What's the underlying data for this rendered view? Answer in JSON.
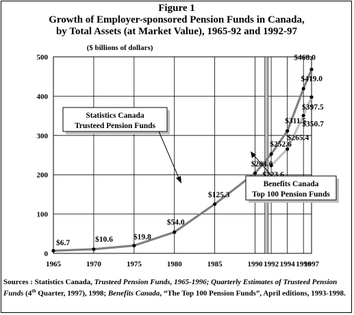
{
  "figure": {
    "label": "Figure 1",
    "title_line1": "Growth of Employer-sponsored Pension Funds in Canada,",
    "title_line2": "by Total Assets (at Market Value), 1965-92 and 1992-97"
  },
  "source": {
    "prefix": "Sources : Statistics Canada, ",
    "ref1": "Trusteed Pension Funds, 1965-1996; Quarterly Estimates of Trusteed Pension Funds",
    "mid1": " (4",
    "sup": "th",
    "mid2": " Quarter, 1997), 1998; ",
    "ref2": "Benefits Canada",
    "suffix": ", “The Top 100 Pension Funds”, April editions, 1993-1998."
  },
  "colors": {
    "statcan_line": "#808080",
    "benefits_line": "#c0c0c0",
    "markers": "#000000"
  },
  "chart_data": {
    "type": "line",
    "ylabel": "($ billions of dollars)",
    "xlabel": "",
    "xlim": [
      1965,
      1997
    ],
    "ylim": [
      0,
      500
    ],
    "grid": true,
    "x_ticks": [
      "1965",
      "1970",
      "1975",
      "1980",
      "1985",
      "1990",
      "1992",
      "1994",
      "1996",
      "1997"
    ],
    "y_ticks": [
      "0",
      "100",
      "200",
      "300",
      "400",
      "500"
    ],
    "series": [
      {
        "name": "Statistics Canada Trusteed Pension Funds",
        "x": [
          1965,
          1970,
          1975,
          1980,
          1985,
          1990,
          1992,
          1994,
          1996,
          1997
        ],
        "values": [
          6.7,
          10.6,
          19.8,
          54.0,
          125.3,
          204.0,
          252.6,
          311.5,
          419.0,
          468.0
        ],
        "labels": [
          "$6.7",
          "$10.6",
          "$19.8",
          "$54.0",
          "$125.3",
          "$204.0",
          "$252.6",
          "$311.5",
          "$419.0",
          "$468.0"
        ]
      },
      {
        "name": "Benefits Canada Top 100 Pension Funds",
        "x": [
          1992,
          1994,
          1996,
          1997
        ],
        "values": [
          223.6,
          265.4,
          350.7,
          397.5
        ],
        "labels": [
          "$223.6",
          "$265.4",
          "$350.7",
          "$397.5"
        ]
      }
    ],
    "annotations": {
      "statcan_box_line1": "Statistics Canada",
      "statcan_box_line2": "Trusteed Pension Funds",
      "benefits_box_line1": "Benefits Canada",
      "benefits_box_line2": "Top 100 Pension Funds"
    }
  }
}
